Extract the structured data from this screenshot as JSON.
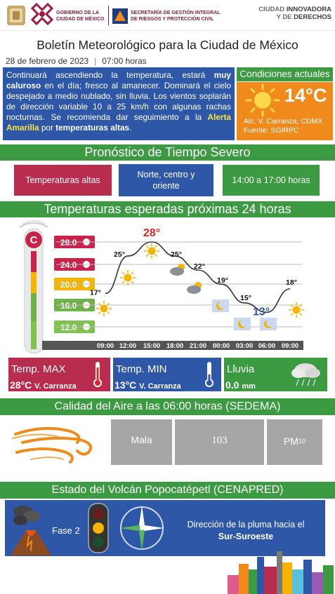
{
  "header": {
    "gov_line1": "GOBIERNO DE LA",
    "gov_line2": "CIUDAD DE MÉXICO",
    "sgirp_line1": "SECRETARÍA DE GESTIÓN INTEGRAL",
    "sgirp_line2": "DE RIESGOS Y PROTECCIÓN CIVIL",
    "city_line1_a": "CIUDAD ",
    "city_line1_b": "INNOVADORA",
    "city_line2_a": "Y DE ",
    "city_line2_b": "DERECHOS"
  },
  "title": "Boletín Meteorológico para la Ciudad de México",
  "date": "28 de febrero de 2023",
  "time": "07:00 horas",
  "bulletin": {
    "t1": "Continuará ascendiendo la temperatura, estará ",
    "t2": "muy caluroso",
    "t3": " en el día; fresco al amanecer. Dominará el cielo despejado a medio nublado, sin lluvia. Los vientos soplarán de dirección variable 10 a 25 km/h con algunas rachas nocturnas. Se recomienda dar seguimiento a la ",
    "t4": "Alerta Amarilla",
    "t5": " por ",
    "t6": "temperaturas altas",
    "t7": "."
  },
  "current": {
    "title": "Condiciones actuales",
    "temp": "14°C",
    "location": "Alc. V. Carranza, CDMX",
    "source": "Fuente: SGIRPC"
  },
  "severe": {
    "title": "Pronóstico de Tiempo Severo",
    "phenomenon": "Temperaturas altas",
    "zone": "Norte, centro y oriente",
    "hours": "14:00 a 17:00 horas"
  },
  "temps": {
    "title": "Temperaturas esperadas próximas 24 horas"
  },
  "chart_data": {
    "type": "line",
    "x": [
      "09:00",
      "12:00",
      "15:00",
      "18:00",
      "21:00",
      "00:00",
      "03:00",
      "06:00",
      "09:00"
    ],
    "y": [
      17,
      25,
      28,
      25,
      22,
      19,
      15,
      13,
      18
    ],
    "point_labels": [
      "17°",
      "25°",
      "28°",
      "25°",
      "22°",
      "19°",
      "15°",
      "13°",
      "18°"
    ],
    "thermometer_labels": [
      "28.0",
      "24.0",
      "20.0",
      "16.0",
      "12.0"
    ],
    "ylim": [
      12,
      28
    ],
    "colors": {
      "max": "#d62828",
      "min": "#2f57a8",
      "line": "#333333"
    }
  },
  "summary": {
    "max_label": "Temp. MAX",
    "max_value": "28°C",
    "max_place": "V. Carranza",
    "min_label": "Temp. MIN",
    "min_value": "13°C",
    "min_place": "V. Carranza",
    "rain_label": "Lluvia",
    "rain_value": "0.0",
    "rain_unit": "mm"
  },
  "air": {
    "title": "Calidad del Aire a las 06:00 horas (SEDEMA)",
    "quality": "Mala",
    "index": "103",
    "pollutant": "PM",
    "pollutant_sub": "10"
  },
  "volcano": {
    "title": "Estado del Volcán Popocatépetl (CENAPRED)",
    "phase": "Fase 2",
    "direction_line1": "Dirección de la pluma hacia el",
    "direction_line2": "Sur-Suroeste"
  }
}
